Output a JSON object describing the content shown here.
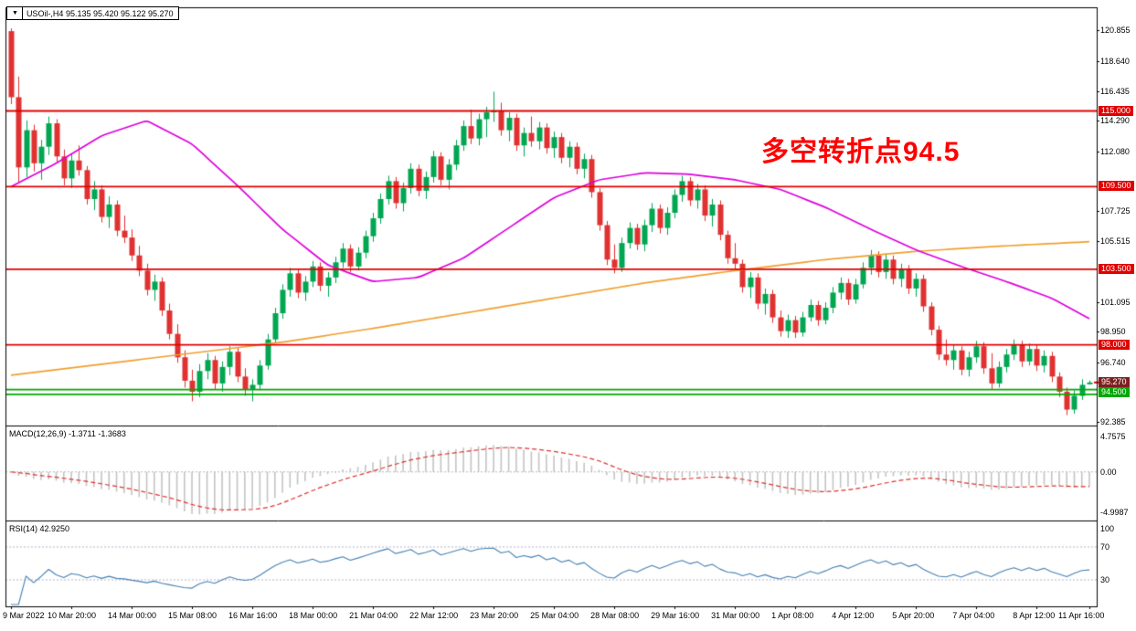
{
  "window": {
    "dropdown_icon": "▼",
    "title": "USOil-,H4 95.135 95.420 95.122 95.270"
  },
  "annotation": {
    "text": "多空转折点94.5",
    "color": "#ff0000"
  },
  "indicators": {
    "macd": {
      "label": "MACD(12,26,9) -1.3711 -1.3683",
      "values": [
        "-1.3711",
        "-1.3683"
      ],
      "scale": {
        "max": "4.7575",
        "zero": "0.00",
        "min": "-4.9987"
      },
      "params": [
        12,
        26,
        9
      ]
    },
    "rsi": {
      "label": "RSI(14) 42.9250",
      "value": "42.9250",
      "period": 14,
      "scale": [
        "100",
        "70",
        "30"
      ],
      "level_lines": [
        70,
        30
      ]
    }
  },
  "price_axis": {
    "ticks": [
      "120.855",
      "118.640",
      "116.435",
      "114.290",
      "112.080",
      "107.725",
      "105.515",
      "101.095",
      "98.950",
      "96.740",
      "92.385"
    ],
    "red_levels": [
      {
        "value": 115.0,
        "label": "115.000"
      },
      {
        "value": 109.5,
        "label": "109.500"
      },
      {
        "value": 103.5,
        "label": "103.500"
      },
      {
        "value": 98.0,
        "label": "98.000"
      }
    ],
    "green_level": {
      "value": 94.5,
      "label": "94.500",
      "lines": [
        94.75,
        94.4
      ]
    },
    "current": {
      "value": 95.27,
      "label": "95.270"
    }
  },
  "colors": {
    "candle_up": "#00a651",
    "candle_down": "#e03131",
    "ma_magenta": "#dd00dd",
    "ma_orange": "#f0a030",
    "level_red": "#e00000",
    "level_green": "#00a800",
    "current_badge_bg": "#7b2020",
    "macd_hist": "#c4c4c4",
    "macd_signal": "#e03030",
    "rsi_line": "#4682b4",
    "frame": "#000000"
  },
  "chart_data": {
    "type": "candlestick",
    "symbol": "USOil-",
    "timeframe": "H4",
    "current_ohlc": {
      "open": 95.135,
      "high": 95.42,
      "low": 95.122,
      "close": 95.27
    },
    "y_range": [
      92.2,
      122.4
    ],
    "x_labels": [
      "9 Mar 2022",
      "10 Mar 20:00",
      "14 Mar 00:00",
      "15 Mar 08:00",
      "16 Mar 16:00",
      "18 Mar 00:00",
      "21 Mar 04:00",
      "22 Mar 12:00",
      "23 Mar 20:00",
      "25 Mar 04:00",
      "28 Mar 08:00",
      "29 Mar 16:00",
      "31 Mar 00:00",
      "1 Apr 08:00",
      "4 Apr 12:00",
      "5 Apr 20:00",
      "7 Apr 04:00",
      "8 Apr 12:00",
      "11 Apr 16:00"
    ],
    "candles_per_label": 8,
    "candles": [
      [
        120.8,
        121.0,
        115.5,
        116.0
      ],
      [
        116.0,
        117.5,
        109.8,
        110.9
      ],
      [
        110.9,
        114.3,
        110.2,
        113.6
      ],
      [
        113.6,
        114.0,
        110.6,
        111.2
      ],
      [
        111.2,
        112.9,
        110.0,
        112.4
      ],
      [
        112.4,
        114.6,
        111.8,
        114.1
      ],
      [
        114.1,
        114.4,
        111.3,
        111.7
      ],
      [
        111.7,
        112.2,
        109.6,
        110.1
      ],
      [
        110.1,
        111.9,
        109.4,
        111.4
      ],
      [
        111.4,
        112.5,
        110.3,
        110.7
      ],
      [
        110.7,
        111.0,
        108.2,
        108.6
      ],
      [
        108.6,
        109.9,
        107.8,
        109.3
      ],
      [
        109.3,
        109.6,
        106.9,
        107.3
      ],
      [
        107.3,
        108.8,
        106.5,
        108.2
      ],
      [
        108.2,
        108.5,
        105.9,
        106.3
      ],
      [
        106.3,
        107.4,
        105.4,
        105.8
      ],
      [
        105.8,
        106.4,
        104.1,
        104.5
      ],
      [
        104.5,
        105.2,
        103.0,
        103.4
      ],
      [
        103.4,
        103.9,
        101.6,
        102.0
      ],
      [
        102.0,
        103.1,
        101.2,
        102.6
      ],
      [
        102.6,
        102.9,
        100.1,
        100.5
      ],
      [
        100.5,
        101.0,
        98.4,
        98.8
      ],
      [
        98.8,
        99.5,
        96.7,
        97.1
      ],
      [
        97.1,
        97.6,
        94.9,
        95.4
      ],
      [
        95.4,
        96.2,
        93.9,
        94.6
      ],
      [
        94.6,
        96.6,
        94.2,
        96.1
      ],
      [
        96.1,
        97.4,
        95.5,
        96.9
      ],
      [
        96.9,
        97.2,
        94.8,
        95.2
      ],
      [
        95.2,
        96.8,
        94.6,
        96.4
      ],
      [
        96.4,
        97.9,
        95.8,
        97.5
      ],
      [
        97.5,
        97.8,
        95.3,
        95.7
      ],
      [
        95.7,
        96.3,
        94.3,
        94.8
      ],
      [
        94.8,
        95.5,
        93.9,
        95.1
      ],
      [
        95.1,
        96.9,
        94.7,
        96.5
      ],
      [
        96.5,
        98.8,
        96.2,
        98.4
      ],
      [
        98.4,
        100.7,
        98.1,
        100.3
      ],
      [
        100.3,
        102.4,
        99.9,
        102.0
      ],
      [
        102.0,
        103.6,
        101.5,
        103.2
      ],
      [
        103.2,
        103.5,
        101.4,
        101.8
      ],
      [
        101.8,
        103.0,
        101.2,
        102.6
      ],
      [
        102.6,
        104.1,
        102.2,
        103.7
      ],
      [
        103.7,
        104.0,
        101.9,
        102.3
      ],
      [
        102.3,
        103.3,
        101.5,
        102.9
      ],
      [
        102.9,
        104.4,
        102.5,
        104.0
      ],
      [
        104.0,
        105.4,
        103.6,
        105.0
      ],
      [
        105.0,
        105.3,
        103.3,
        103.7
      ],
      [
        103.7,
        105.1,
        103.4,
        104.7
      ],
      [
        104.7,
        106.3,
        104.3,
        105.9
      ],
      [
        105.9,
        107.6,
        105.5,
        107.2
      ],
      [
        107.2,
        109.0,
        106.8,
        108.6
      ],
      [
        108.6,
        110.3,
        108.2,
        109.9
      ],
      [
        109.9,
        110.2,
        107.9,
        108.3
      ],
      [
        108.3,
        109.8,
        107.7,
        109.4
      ],
      [
        109.4,
        111.2,
        109.0,
        110.8
      ],
      [
        110.8,
        111.1,
        108.8,
        109.2
      ],
      [
        109.2,
        110.6,
        108.6,
        110.2
      ],
      [
        110.2,
        112.1,
        109.8,
        111.7
      ],
      [
        111.7,
        112.0,
        109.6,
        110.0
      ],
      [
        110.0,
        111.5,
        109.3,
        111.1
      ],
      [
        111.1,
        112.9,
        110.7,
        112.5
      ],
      [
        112.5,
        114.3,
        112.1,
        113.9
      ],
      [
        113.9,
        115.1,
        112.6,
        113.0
      ],
      [
        113.0,
        114.8,
        112.5,
        114.4
      ],
      [
        114.4,
        115.3,
        113.1,
        114.9
      ],
      [
        114.9,
        116.4,
        114.2,
        115.0
      ],
      [
        115.0,
        115.6,
        113.2,
        113.6
      ],
      [
        113.6,
        114.9,
        112.8,
        114.5
      ],
      [
        114.5,
        114.8,
        112.1,
        112.5
      ],
      [
        112.5,
        113.8,
        111.7,
        113.4
      ],
      [
        113.4,
        114.6,
        112.4,
        112.8
      ],
      [
        112.8,
        114.2,
        112.2,
        113.8
      ],
      [
        113.8,
        114.1,
        111.9,
        112.3
      ],
      [
        112.3,
        113.5,
        111.6,
        113.1
      ],
      [
        113.1,
        113.4,
        111.2,
        111.6
      ],
      [
        111.6,
        112.8,
        110.9,
        112.4
      ],
      [
        112.4,
        112.7,
        110.4,
        110.8
      ],
      [
        110.8,
        111.9,
        110.1,
        111.5
      ],
      [
        111.5,
        111.8,
        108.7,
        109.1
      ],
      [
        109.1,
        109.4,
        106.3,
        106.7
      ],
      [
        106.7,
        107.0,
        103.8,
        104.2
      ],
      [
        104.2,
        105.3,
        103.2,
        103.6
      ],
      [
        103.6,
        105.8,
        103.3,
        105.4
      ],
      [
        105.4,
        106.9,
        105.0,
        106.5
      ],
      [
        106.5,
        106.8,
        104.9,
        105.3
      ],
      [
        105.3,
        107.1,
        104.8,
        106.7
      ],
      [
        106.7,
        108.3,
        106.2,
        107.9
      ],
      [
        107.9,
        108.2,
        106.1,
        106.5
      ],
      [
        106.5,
        108.0,
        106.0,
        107.6
      ],
      [
        107.6,
        109.3,
        107.2,
        108.9
      ],
      [
        108.9,
        110.3,
        108.4,
        109.9
      ],
      [
        109.9,
        110.2,
        108.1,
        108.5
      ],
      [
        108.5,
        109.7,
        107.9,
        109.3
      ],
      [
        109.3,
        109.6,
        107.0,
        107.4
      ],
      [
        107.4,
        108.6,
        106.6,
        108.2
      ],
      [
        108.2,
        108.5,
        105.6,
        106.0
      ],
      [
        106.0,
        106.3,
        103.9,
        104.3
      ],
      [
        104.3,
        105.4,
        103.5,
        103.9
      ],
      [
        103.9,
        104.2,
        101.8,
        102.2
      ],
      [
        102.2,
        103.3,
        101.4,
        102.9
      ],
      [
        102.9,
        103.2,
        100.6,
        101.0
      ],
      [
        101.0,
        102.1,
        100.2,
        101.7
      ],
      [
        101.7,
        102.0,
        99.6,
        100.0
      ],
      [
        100.0,
        100.5,
        98.6,
        99.0
      ],
      [
        99.0,
        100.2,
        98.5,
        99.8
      ],
      [
        99.8,
        100.1,
        98.5,
        98.9
      ],
      [
        98.9,
        100.4,
        98.6,
        100.0
      ],
      [
        100.0,
        101.3,
        99.7,
        100.9
      ],
      [
        100.9,
        101.2,
        99.4,
        99.8
      ],
      [
        99.8,
        101.1,
        99.5,
        100.7
      ],
      [
        100.7,
        102.2,
        100.3,
        101.8
      ],
      [
        101.8,
        102.9,
        101.3,
        102.5
      ],
      [
        102.5,
        102.8,
        100.9,
        101.3
      ],
      [
        101.3,
        102.8,
        101.0,
        102.4
      ],
      [
        102.4,
        104.0,
        102.1,
        103.6
      ],
      [
        103.6,
        104.9,
        103.1,
        104.5
      ],
      [
        104.5,
        104.8,
        102.9,
        103.3
      ],
      [
        103.3,
        104.6,
        102.8,
        104.2
      ],
      [
        104.2,
        104.5,
        102.4,
        102.8
      ],
      [
        102.8,
        103.9,
        102.2,
        103.5
      ],
      [
        103.5,
        103.8,
        101.7,
        102.1
      ],
      [
        102.1,
        103.2,
        101.5,
        102.8
      ],
      [
        102.8,
        103.1,
        100.4,
        100.8
      ],
      [
        100.8,
        101.1,
        98.7,
        99.1
      ],
      [
        99.1,
        99.4,
        96.9,
        97.3
      ],
      [
        97.3,
        98.4,
        96.5,
        96.9
      ],
      [
        96.9,
        98.0,
        96.2,
        97.6
      ],
      [
        97.6,
        97.9,
        95.8,
        96.2
      ],
      [
        96.2,
        97.5,
        95.7,
        97.1
      ],
      [
        97.1,
        98.3,
        96.7,
        97.9
      ],
      [
        97.9,
        98.2,
        95.9,
        96.3
      ],
      [
        96.3,
        97.4,
        94.8,
        95.2
      ],
      [
        95.2,
        96.8,
        94.9,
        96.4
      ],
      [
        96.4,
        97.7,
        96.0,
        97.3
      ],
      [
        97.3,
        98.4,
        96.9,
        98.0
      ],
      [
        98.0,
        98.3,
        96.4,
        96.8
      ],
      [
        96.8,
        98.1,
        96.5,
        97.7
      ],
      [
        97.7,
        98.0,
        96.1,
        96.5
      ],
      [
        96.5,
        97.6,
        96.0,
        97.2
      ],
      [
        97.2,
        97.5,
        95.3,
        95.7
      ],
      [
        95.7,
        96.0,
        94.2,
        94.6
      ],
      [
        94.6,
        94.9,
        92.9,
        93.3
      ],
      [
        93.3,
        94.7,
        93.0,
        94.3
      ],
      [
        94.3,
        95.5,
        94.0,
        95.1
      ],
      [
        95.14,
        95.42,
        95.12,
        95.27
      ]
    ],
    "ma_magenta": [
      [
        0,
        109.5
      ],
      [
        6,
        111.2
      ],
      [
        12,
        113.2
      ],
      [
        18,
        114.3
      ],
      [
        24,
        112.6
      ],
      [
        30,
        109.6
      ],
      [
        36,
        106.4
      ],
      [
        42,
        103.8
      ],
      [
        48,
        102.6
      ],
      [
        54,
        102.9
      ],
      [
        60,
        104.3
      ],
      [
        66,
        106.5
      ],
      [
        72,
        108.7
      ],
      [
        78,
        110.0
      ],
      [
        84,
        110.5
      ],
      [
        90,
        110.4
      ],
      [
        96,
        110.0
      ],
      [
        102,
        109.3
      ],
      [
        108,
        108.0
      ],
      [
        114,
        106.4
      ],
      [
        120,
        104.9
      ],
      [
        126,
        103.7
      ],
      [
        132,
        102.6
      ],
      [
        138,
        101.4
      ],
      [
        143,
        99.9
      ]
    ],
    "ma_orange": [
      [
        0,
        95.8
      ],
      [
        12,
        96.6
      ],
      [
        24,
        97.4
      ],
      [
        36,
        98.2
      ],
      [
        48,
        99.2
      ],
      [
        60,
        100.3
      ],
      [
        72,
        101.4
      ],
      [
        84,
        102.5
      ],
      [
        96,
        103.4
      ],
      [
        108,
        104.2
      ],
      [
        120,
        104.8
      ],
      [
        132,
        105.2
      ],
      [
        143,
        105.5
      ]
    ]
  }
}
